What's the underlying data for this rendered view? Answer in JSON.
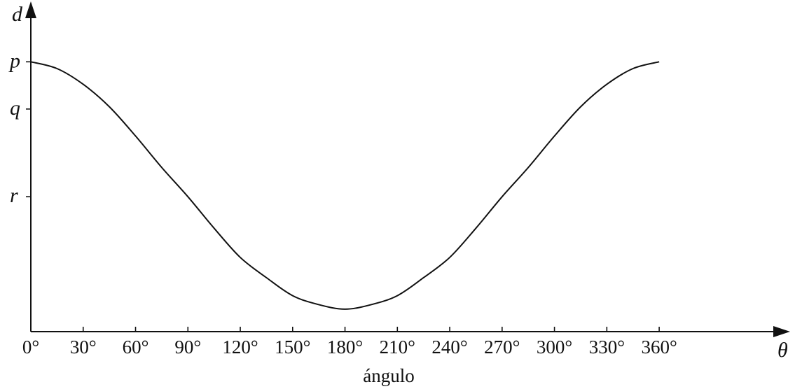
{
  "chart_data": {
    "type": "line",
    "x_axis_symbol": "θ",
    "y_axis_symbol": "d",
    "xlabel": "ángulo",
    "x_ticks": [
      0,
      30,
      60,
      90,
      120,
      150,
      180,
      210,
      240,
      270,
      300,
      330,
      360
    ],
    "x_tick_labels": [
      "0°",
      "30°",
      "60°",
      "90°",
      "120°",
      "150°",
      "180°",
      "210°",
      "240°",
      "270°",
      "300°",
      "330°",
      "360°"
    ],
    "y_ticks": [
      {
        "label": "p",
        "value": 1.0
      },
      {
        "label": "q",
        "value": 0.79
      },
      {
        "label": "r",
        "value": 0.4
      }
    ],
    "xlim": [
      0,
      435
    ],
    "ylim": [
      -0.2,
      1.25
    ],
    "grid": false,
    "series": [
      {
        "x": [
          0,
          15,
          30,
          45,
          60,
          75,
          90,
          105,
          120,
          135,
          150,
          165,
          180,
          195,
          210,
          225,
          240,
          255,
          270,
          285,
          300,
          315,
          330,
          345,
          360
        ],
        "y": [
          1.0,
          0.97,
          0.9,
          0.8,
          0.67,
          0.53,
          0.4,
          0.26,
          0.13,
          0.04,
          -0.04,
          -0.08,
          -0.1,
          -0.08,
          -0.04,
          0.04,
          0.13,
          0.26,
          0.4,
          0.53,
          0.67,
          0.8,
          0.9,
          0.97,
          1.0
        ]
      }
    ]
  }
}
